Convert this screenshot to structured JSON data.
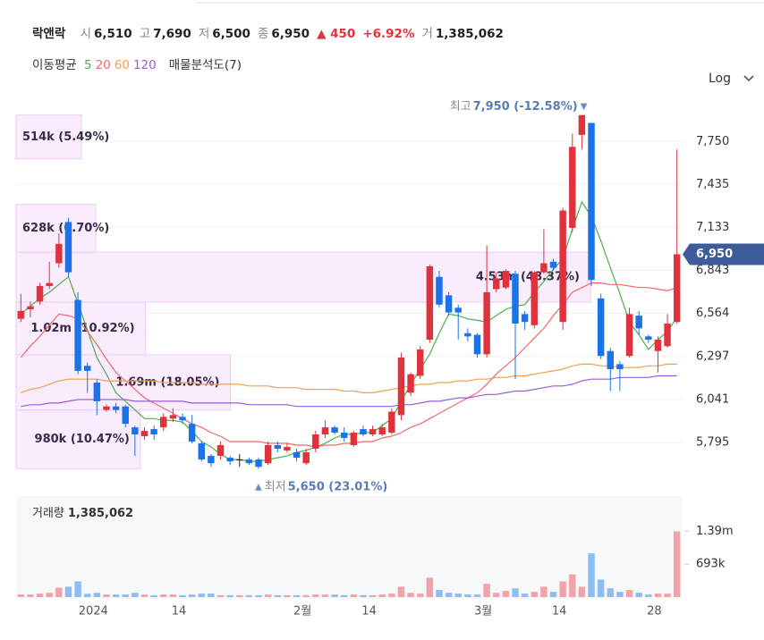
{
  "header": {
    "name": "락앤락",
    "quote": [
      {
        "label": "시",
        "value": "6,510"
      },
      {
        "label": "고",
        "value": "7,690"
      },
      {
        "label": "저",
        "value": "6,500"
      },
      {
        "label": "종",
        "value": "6,950"
      }
    ],
    "change": "▲ 450",
    "change_pct": "+6.92%",
    "volume_label": "거",
    "volume": "1,385,062"
  },
  "chart_data": {
    "type": "candlestick",
    "legend_title": "이동평균",
    "profile_label": "매물분석도(7)",
    "scale_label": "Log",
    "log_scale": true,
    "grid": true,
    "categories": [
      null,
      null,
      null,
      null,
      null,
      null,
      null,
      null,
      "2024",
      null,
      null,
      null,
      null,
      null,
      null,
      null,
      null,
      "14",
      null,
      null,
      null,
      null,
      null,
      null,
      null,
      null,
      null,
      null,
      null,
      null,
      "2월",
      null,
      null,
      null,
      null,
      null,
      null,
      "14",
      null,
      null,
      null,
      null,
      null,
      null,
      null,
      null,
      null,
      null,
      null,
      "3월",
      null,
      null,
      null,
      null,
      null,
      null,
      null,
      "14",
      null,
      null,
      null,
      null,
      null,
      null,
      null,
      null,
      null,
      "28",
      null,
      null
    ],
    "ohlc": {
      "open": [
        6530,
        6590,
        6640,
        6740,
        6890,
        7170,
        6650,
        6240,
        6140,
        5980,
        6000,
        6000,
        5880,
        5830,
        5870,
        5880,
        5930,
        5940,
        5900,
        5790,
        5720,
        5720,
        5710,
        5700,
        5700,
        5700,
        5680,
        5780,
        5750,
        5740,
        5680,
        5760,
        5840,
        5880,
        5850,
        5780,
        5870,
        5840,
        5840,
        5850,
        5950,
        6080,
        6180,
        6400,
        6800,
        6680,
        6600,
        6440,
        6430,
        6310,
        6720,
        6730,
        6820,
        6560,
        6490,
        6830,
        6900,
        6510,
        7130,
        7800,
        7890,
        6660,
        6330,
        6250,
        6300,
        6550,
        6420,
        6330,
        6360,
        6510
      ],
      "high": [
        6690,
        6640,
        6760,
        6900,
        7090,
        7200,
        6700,
        6260,
        6160,
        6010,
        6020,
        6010,
        5890,
        5880,
        5890,
        5960,
        5990,
        5960,
        5950,
        5800,
        5730,
        5800,
        5720,
        5730,
        5710,
        5710,
        5800,
        5800,
        5790,
        5760,
        5760,
        5860,
        5920,
        5890,
        5880,
        5860,
        5890,
        5890,
        5900,
        5990,
        6320,
        6200,
        6360,
        6880,
        6840,
        6700,
        6620,
        6470,
        6440,
        7010,
        6830,
        6850,
        6840,
        6580,
        6840,
        7120,
        6920,
        7270,
        7810,
        7950,
        7890,
        6690,
        6350,
        6270,
        6600,
        6580,
        6430,
        6420,
        6560,
        7690
      ],
      "low": [
        6510,
        6540,
        6620,
        6720,
        6860,
        6800,
        6190,
        6080,
        5950,
        5970,
        5960,
        5880,
        5720,
        5810,
        5810,
        5860,
        5910,
        5900,
        5790,
        5690,
        5660,
        5700,
        5670,
        5660,
        5670,
        5650,
        5670,
        5740,
        5740,
        5690,
        5670,
        5740,
        5820,
        5840,
        5800,
        5770,
        5830,
        5830,
        5830,
        5840,
        5920,
        6060,
        6160,
        6380,
        6600,
        6550,
        6400,
        6390,
        6290,
        6290,
        6700,
        6720,
        6160,
        6460,
        6470,
        6820,
        6840,
        6460,
        7100,
        7690,
        6740,
        6280,
        6090,
        6090,
        6290,
        6430,
        6380,
        6200,
        6350,
        6500
      ],
      "close": [
        6580,
        6610,
        6740,
        6760,
        7020,
        6830,
        6210,
        6210,
        6030,
        6000,
        5980,
        5900,
        5840,
        5860,
        5840,
        5940,
        5950,
        5920,
        5800,
        5700,
        5680,
        5780,
        5690,
        5700,
        5680,
        5660,
        5780,
        5760,
        5770,
        5710,
        5740,
        5840,
        5880,
        5850,
        5820,
        5850,
        5840,
        5870,
        5880,
        5970,
        6290,
        6190,
        6340,
        6870,
        6620,
        6570,
        6570,
        6420,
        6310,
        6700,
        6790,
        6840,
        6500,
        6510,
        6830,
        6890,
        6860,
        7250,
        7710,
        7950,
        6780,
        6300,
        6220,
        6220,
        6560,
        6470,
        6400,
        6400,
        6500,
        6950
      ]
    },
    "up_color": "#e0323c",
    "down_color": "#1a73e8",
    "flat_color": "#222222",
    "moving_averages": [
      {
        "name": "5",
        "color": "#4cae4c",
        "values": [
          6560,
          6610,
          6660,
          6700,
          6750,
          6800,
          6630,
          6460,
          6290,
          6190,
          6080,
          6030,
          5980,
          5930,
          5930,
          5920,
          5920,
          5910,
          5860,
          5800,
          5770,
          5730,
          5700,
          5700,
          5690,
          5690,
          5700,
          5710,
          5720,
          5740,
          5750,
          5770,
          5790,
          5820,
          5840,
          5840,
          5850,
          5850,
          5890,
          5930,
          6030,
          6130,
          6220,
          6310,
          6440,
          6560,
          6550,
          6530,
          6520,
          6510,
          6550,
          6590,
          6610,
          6620,
          6700,
          6770,
          6850,
          6920,
          7120,
          7310,
          7210,
          7040,
          6860,
          6690,
          6510,
          6430,
          6340,
          6400,
          6450,
          6540
        ]
      },
      {
        "name": "20",
        "color": "#ef6a6a",
        "values": [
          6290,
          6360,
          6420,
          6490,
          6560,
          6550,
          6530,
          6450,
          6370,
          6280,
          6200,
          6150,
          6100,
          6050,
          6020,
          5990,
          5960,
          5930,
          5900,
          5880,
          5850,
          5830,
          5800,
          5800,
          5800,
          5800,
          5790,
          5790,
          5790,
          5780,
          5780,
          5770,
          5780,
          5780,
          5790,
          5790,
          5800,
          5800,
          5820,
          5830,
          5850,
          5880,
          5900,
          5930,
          5960,
          5990,
          6020,
          6050,
          6080,
          6130,
          6190,
          6240,
          6290,
          6350,
          6410,
          6470,
          6550,
          6620,
          6700,
          6730,
          6760,
          6760,
          6750,
          6750,
          6740,
          6730,
          6730,
          6720,
          6710,
          6730
        ]
      },
      {
        "name": "60",
        "color": "#f0a050",
        "values": [
          6080,
          6100,
          6110,
          6130,
          6150,
          6160,
          6160,
          6160,
          6160,
          6150,
          6150,
          6150,
          6150,
          6150,
          6150,
          6140,
          6140,
          6140,
          6140,
          6130,
          6130,
          6130,
          6130,
          6130,
          6120,
          6120,
          6120,
          6110,
          6110,
          6110,
          6100,
          6100,
          6100,
          6100,
          6090,
          6090,
          6080,
          6080,
          6090,
          6100,
          6110,
          6120,
          6130,
          6130,
          6140,
          6140,
          6150,
          6150,
          6160,
          6160,
          6170,
          6170,
          6180,
          6180,
          6190,
          6200,
          6210,
          6220,
          6240,
          6250,
          6250,
          6240,
          6240,
          6230,
          6230,
          6230,
          6240,
          6240,
          6250,
          6250
        ]
      },
      {
        "name": "120",
        "color": "#9b5bd6",
        "values": [
          6000,
          6010,
          6010,
          6020,
          6020,
          6030,
          6040,
          6040,
          6040,
          6040,
          6040,
          6040,
          6030,
          6030,
          6030,
          6030,
          6030,
          6030,
          6020,
          6020,
          6020,
          6020,
          6020,
          6020,
          6010,
          6010,
          6010,
          6010,
          6010,
          6000,
          6000,
          6000,
          6000,
          6000,
          6000,
          6000,
          6000,
          6000,
          6000,
          6000,
          6010,
          6010,
          6020,
          6030,
          6030,
          6040,
          6050,
          6050,
          6060,
          6070,
          6070,
          6080,
          6090,
          6090,
          6100,
          6110,
          6120,
          6120,
          6130,
          6150,
          6160,
          6160,
          6160,
          6170,
          6170,
          6170,
          6170,
          6180,
          6180,
          6180
        ]
      }
    ],
    "volume_profile": {
      "bins": [
        5650,
        5979,
        6307,
        6636,
        6964,
        7293,
        7621,
        7950
      ],
      "values": [
        980000,
        1690000,
        1020000,
        4530000,
        628000,
        null,
        514000
      ],
      "value_labels": [
        "980k (10.47%)",
        "1.69m (18.05%)",
        "1.02m (10.92%)",
        "4.53m (48.37%)",
        "628k (6.70%)",
        null,
        "514k (5.49%)"
      ],
      "color": "#f9ecfd",
      "edge_color": "#eccaf7"
    },
    "ylim": [
      5550,
      8080
    ],
    "yticks": [
      {
        "value": 5795,
        "label": "5,795"
      },
      {
        "value": 6041,
        "label": "6,041"
      },
      {
        "value": 6297,
        "label": "6,297"
      },
      {
        "value": 6564,
        "label": "6,564"
      },
      {
        "value": 6843,
        "label": "6,843"
      },
      {
        "value": 7133,
        "label": "7,133"
      },
      {
        "value": 7435,
        "label": "7,435"
      },
      {
        "value": 7750,
        "label": "7,750"
      }
    ],
    "last_price": {
      "value": 6950,
      "label": "6,950",
      "color": "#3f5c9a"
    },
    "high_note": {
      "prefix": "최고",
      "text": "7,950 (-12.58%)",
      "marker": "▼"
    },
    "low_note": {
      "marker": "▲",
      "prefix": "최저",
      "text": "5,650 (23.01%)"
    },
    "volume": {
      "title": "거래량",
      "last": "1,385,062",
      "values": [
        55000,
        55000,
        74000,
        90000,
        200000,
        220000,
        330000,
        70000,
        90000,
        55000,
        55000,
        55000,
        90000,
        55000,
        40000,
        55000,
        55000,
        40000,
        55000,
        74000,
        74000,
        40000,
        40000,
        40000,
        40000,
        40000,
        55000,
        40000,
        40000,
        40000,
        40000,
        55000,
        55000,
        55000,
        40000,
        55000,
        40000,
        40000,
        55000,
        74000,
        220000,
        90000,
        74000,
        410000,
        150000,
        90000,
        74000,
        55000,
        55000,
        280000,
        90000,
        130000,
        185000,
        74000,
        110000,
        220000,
        110000,
        330000,
        480000,
        220000,
        925000,
        370000,
        185000,
        110000,
        150000,
        90000,
        55000,
        74000,
        74000,
        1385062
      ],
      "up_color": "#f3a3a7",
      "down_color": "#8dbdf3",
      "ylim": [
        0,
        2130000
      ],
      "yticks": [
        {
          "value": 693000,
          "label": "693k"
        },
        {
          "value": 1390000,
          "label": "1.39m"
        }
      ]
    }
  }
}
